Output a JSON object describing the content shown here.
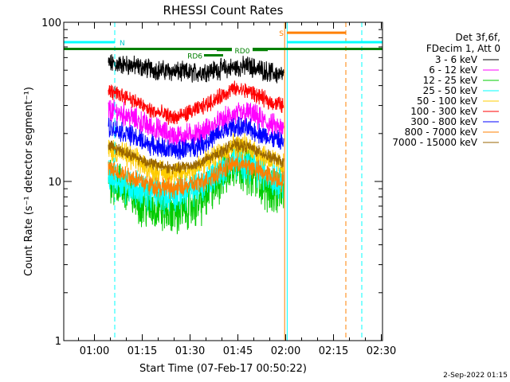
{
  "chart_data": {
    "type": "line",
    "title": "RHESSI Count Rates",
    "xlabel": "Start Time (07-Feb-17 00:50:22)",
    "ylabel": "Count Rate (s⁻¹ detector segment⁻¹)",
    "y_scale": "log",
    "ylim": [
      1,
      100
    ],
    "x_range_minutes_after_start": [
      0,
      100
    ],
    "x_ticks": [
      {
        "label": "01:00",
        "minute": 9.63
      },
      {
        "label": "01:15",
        "minute": 24.63
      },
      {
        "label": "01:30",
        "minute": 39.63
      },
      {
        "label": "01:45",
        "minute": 54.63
      },
      {
        "label": "02:00",
        "minute": 69.63
      },
      {
        "label": "02:15",
        "minute": 84.63
      },
      {
        "label": "02:30",
        "minute": 99.63
      }
    ],
    "y_ticks": [
      {
        "label": "1",
        "value": 1
      },
      {
        "label": "10",
        "value": 10
      },
      {
        "label": "100",
        "value": 100
      }
    ],
    "legend_header": [
      "Det 3f,6f,",
      "FDecim 1, Att 0"
    ],
    "series": [
      {
        "name": "3 - 6 keV",
        "color": "#000000",
        "anchors": [
          [
            14,
            55
          ],
          [
            20,
            54
          ],
          [
            30,
            50
          ],
          [
            40,
            48
          ],
          [
            50,
            51
          ],
          [
            58,
            53
          ],
          [
            64,
            49
          ],
          [
            69,
            46
          ]
        ],
        "noise": 0.05
      },
      {
        "name": "6 - 12 keV",
        "color": "#ff00ff",
        "anchors": [
          [
            14,
            28
          ],
          [
            20,
            26
          ],
          [
            27,
            22
          ],
          [
            35,
            19
          ],
          [
            43,
            20
          ],
          [
            53,
            26
          ],
          [
            58,
            27
          ],
          [
            64,
            23
          ],
          [
            69,
            21
          ]
        ],
        "noise": 0.06
      },
      {
        "name": "12 - 25 keV",
        "color": "#00cc00",
        "anchors": [
          [
            14,
            11
          ],
          [
            20,
            8.5
          ],
          [
            27,
            7
          ],
          [
            35,
            6.5
          ],
          [
            43,
            7.5
          ],
          [
            50,
            11
          ],
          [
            54,
            13
          ],
          [
            58,
            12
          ],
          [
            64,
            9
          ],
          [
            69,
            9
          ]
        ],
        "noise": 0.12
      },
      {
        "name": "25 - 50 keV",
        "color": "#00ffff",
        "anchors": [
          [
            14,
            11
          ],
          [
            20,
            9.5
          ],
          [
            27,
            8.5
          ],
          [
            35,
            8.3
          ],
          [
            43,
            9.5
          ],
          [
            53,
            13.5
          ],
          [
            58,
            13
          ],
          [
            64,
            11
          ],
          [
            69,
            10
          ]
        ],
        "noise": 0.09
      },
      {
        "name": "50 - 100 keV",
        "color": "#ffcc00",
        "anchors": [
          [
            14,
            16
          ],
          [
            20,
            14.5
          ],
          [
            27,
            12
          ],
          [
            35,
            11
          ],
          [
            43,
            12.5
          ],
          [
            53,
            17
          ],
          [
            58,
            16.5
          ],
          [
            64,
            14
          ],
          [
            69,
            12.5
          ]
        ],
        "noise": 0.06
      },
      {
        "name": "100 - 300 keV",
        "color": "#ff0000",
        "anchors": [
          [
            14,
            37
          ],
          [
            20,
            34
          ],
          [
            27,
            28
          ],
          [
            35,
            25
          ],
          [
            43,
            29
          ],
          [
            53,
            38
          ],
          [
            58,
            37
          ],
          [
            64,
            32
          ],
          [
            69,
            30
          ]
        ],
        "noise": 0.04
      },
      {
        "name": "300 - 800 keV",
        "color": "#0000ff",
        "anchors": [
          [
            14,
            22
          ],
          [
            20,
            20
          ],
          [
            27,
            17
          ],
          [
            35,
            15.5
          ],
          [
            43,
            17
          ],
          [
            53,
            22
          ],
          [
            58,
            21.5
          ],
          [
            64,
            19
          ],
          [
            69,
            17.5
          ]
        ],
        "noise": 0.05
      },
      {
        "name": "800 - 7000 keV",
        "color": "#ff8000",
        "anchors": [
          [
            14,
            12
          ],
          [
            20,
            11
          ],
          [
            27,
            9.5
          ],
          [
            35,
            9
          ],
          [
            43,
            9.8
          ],
          [
            53,
            13
          ],
          [
            58,
            12.5
          ],
          [
            64,
            11
          ],
          [
            69,
            10
          ]
        ],
        "noise": 0.05
      },
      {
        "name": "7000 - 15000 keV",
        "color": "#996600",
        "anchors": [
          [
            14,
            17
          ],
          [
            20,
            15
          ],
          [
            27,
            13
          ],
          [
            35,
            12
          ],
          [
            43,
            13
          ],
          [
            53,
            17
          ],
          [
            58,
            16.5
          ],
          [
            64,
            14.5
          ],
          [
            69,
            13
          ]
        ],
        "noise": 0.03
      }
    ],
    "attenuator_bars": [
      {
        "label": "N",
        "color": "#00ffff",
        "segments": [
          [
            0,
            16
          ]
        ],
        "level": 75
      },
      {
        "label": "",
        "color": "#00ffff",
        "segments": [
          [
            70,
            100
          ]
        ],
        "level": 75
      },
      {
        "label": "S",
        "color": "#ff8000",
        "segments": [
          [
            70,
            88.5
          ]
        ],
        "level": 86
      },
      {
        "label": "",
        "color": "#008000",
        "segments": [
          [
            0,
            100
          ]
        ],
        "level": 68
      },
      {
        "label": "RD0",
        "color": "#008000",
        "segments": [
          [
            48,
            64
          ]
        ],
        "level": 67
      },
      {
        "label": "RD6",
        "color": "#008000",
        "segments": [
          [
            44,
            50
          ]
        ],
        "level": 62
      }
    ],
    "vertical_markers": [
      {
        "minute": 16,
        "color": "#00ffff",
        "style": "dashed"
      },
      {
        "minute": 69.3,
        "color": "#ff8000",
        "style": "solid"
      },
      {
        "minute": 70.1,
        "color": "#00ffff",
        "style": "solid"
      },
      {
        "minute": 88.5,
        "color": "#ff8000",
        "style": "dashed"
      },
      {
        "minute": 93.5,
        "color": "#00ffff",
        "style": "dashed"
      }
    ],
    "data_start_minute": 14,
    "data_end_minute": 69
  },
  "footer": {
    "timestamp": "2-Sep-2022 01:15"
  }
}
